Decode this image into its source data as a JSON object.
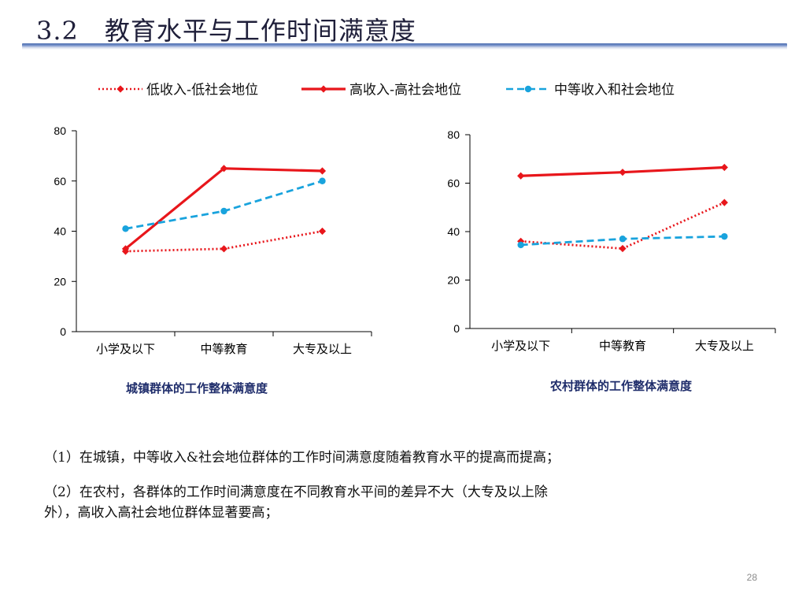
{
  "slide": {
    "title": "3.2　教育水平与工作时间满意度",
    "page_number": "28"
  },
  "legend": [
    {
      "label": "低收入-低社会地位",
      "color": "#e8161b",
      "dash": "dotted",
      "marker": "diamond"
    },
    {
      "label": "高收入-高社会地位",
      "color": "#e8161b",
      "dash": "solid",
      "marker": "diamond"
    },
    {
      "label": "中等收入和社会地位",
      "color": "#19a3dd",
      "dash": "dashed",
      "marker": "circle"
    }
  ],
  "chart_data": [
    {
      "type": "line",
      "title": "城镇群体的工作整体满意度",
      "categories": [
        "小学及以下",
        "中等教育",
        "大专及以上"
      ],
      "ylim": [
        0,
        80
      ],
      "yticks": [
        0,
        20,
        40,
        60,
        80
      ],
      "series": [
        {
          "name": "低收入-低社会地位",
          "values": [
            32,
            33,
            40
          ]
        },
        {
          "name": "高收入-高社会地位",
          "values": [
            33,
            65,
            64
          ]
        },
        {
          "name": "中等收入和社会地位",
          "values": [
            41,
            48,
            60
          ]
        }
      ]
    },
    {
      "type": "line",
      "title": "农村群体的工作整体满意度",
      "categories": [
        "小学及以下",
        "中等教育",
        "大专及以上"
      ],
      "ylim": [
        0,
        80
      ],
      "yticks": [
        0,
        20,
        40,
        60,
        80
      ],
      "series": [
        {
          "name": "低收入-低社会地位",
          "values": [
            36,
            33,
            52
          ]
        },
        {
          "name": "高收入-高社会地位",
          "values": [
            63,
            64.5,
            66.5
          ]
        },
        {
          "name": "中等收入和社会地位",
          "values": [
            34.5,
            37,
            38
          ]
        }
      ]
    }
  ],
  "notes": {
    "note1": "（1）在城镇，中等收入&社会地位群体的工作时间满意度随着教育水平的提高而提高；",
    "note2_line1": "（2）在农村，各群体的工作时间满意度在不同教育水平间的差异不大（大专及以上除",
    "note2_line2": "外），高收入高社会地位群体显著要高；"
  }
}
